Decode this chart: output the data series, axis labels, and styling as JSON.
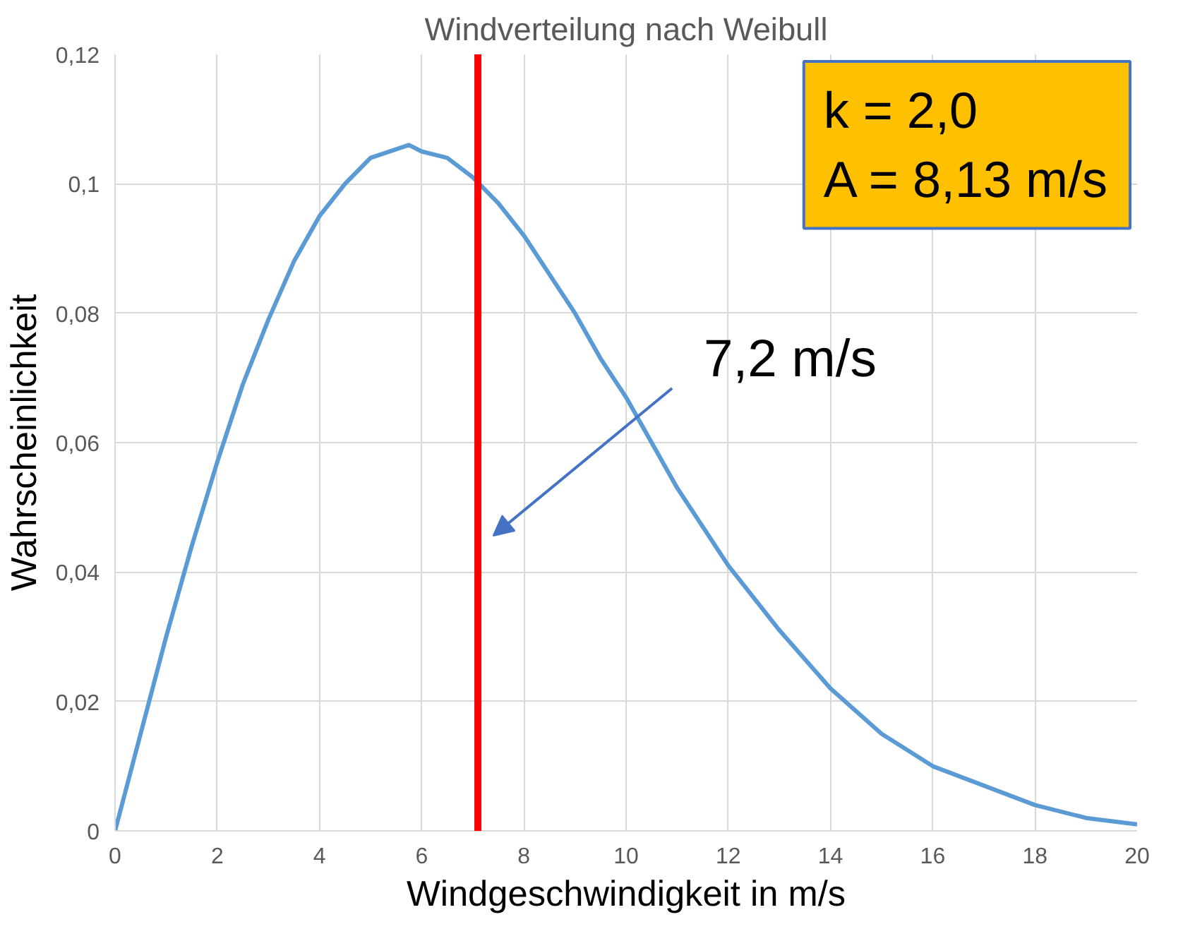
{
  "chart_data": {
    "type": "line",
    "title": "Windverteilung nach Weibull",
    "xlabel": "Windgeschwindigkeit in m/s",
    "ylabel": "Wahrscheinlichkeit",
    "x": [
      0,
      0.5,
      1,
      1.5,
      2,
      2.5,
      3,
      3.5,
      4,
      4.5,
      5,
      5.75,
      6,
      6.5,
      7,
      7.5,
      8,
      8.5,
      9,
      9.5,
      10,
      10.5,
      11,
      12,
      13,
      14,
      15,
      16,
      17,
      18,
      19,
      20
    ],
    "series": [
      {
        "color": "#5b9bd5",
        "values": [
          0,
          0.015,
          0.03,
          0.044,
          0.057,
          0.069,
          0.079,
          0.088,
          0.095,
          0.1,
          0.104,
          0.106,
          0.105,
          0.104,
          0.101,
          0.097,
          0.092,
          0.086,
          0.08,
          0.073,
          0.067,
          0.06,
          0.053,
          0.041,
          0.031,
          0.022,
          0.015,
          0.01,
          0.007,
          0.004,
          0.002,
          0.001
        ]
      }
    ],
    "xlim": [
      0,
      20
    ],
    "xticks": [
      0,
      2,
      4,
      6,
      8,
      10,
      12,
      14,
      16,
      18,
      20
    ],
    "ylim": [
      0,
      0.12
    ],
    "yticks": [
      0,
      {
        "value": 0.02,
        "label": "0,02"
      },
      {
        "value": 0.04,
        "label": "0,04"
      },
      {
        "value": 0.06,
        "label": "0,06"
      },
      {
        "value": 0.08,
        "label": "0,08"
      },
      {
        "value": 0.1,
        "label": "0,1"
      },
      {
        "value": 0.12,
        "label": "0,12"
      }
    ],
    "grid": true,
    "marker": "none",
    "line_style": "solid",
    "ref_lines": [
      {
        "axis": "x",
        "value": 7.1,
        "color": "#ff0000",
        "label": "7,2 m/s"
      }
    ],
    "annotations": [
      "k = 2,0\nA = 8,13 m/s"
    ]
  }
}
